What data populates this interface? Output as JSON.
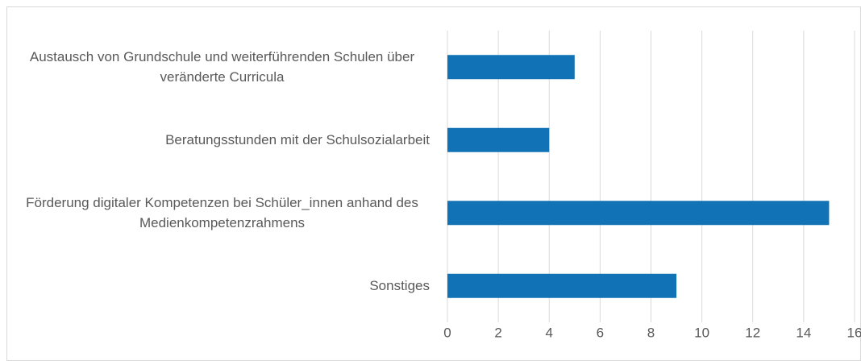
{
  "chart_data": {
    "type": "bar",
    "orientation": "horizontal",
    "categories": [
      "Austausch von Grundschule und weiterführenden Schulen über veränderte Curricula",
      "Beratungsstunden mit der Schulsozialarbeit",
      "Förderung digitaler Kompetenzen bei Schüler_innen anhand des Medienkompetenzrahmens",
      "Sonstiges"
    ],
    "values": [
      5,
      4,
      15,
      9
    ],
    "color": "#1173b5",
    "xlim": [
      0,
      16
    ],
    "xticks": [
      0,
      2,
      4,
      6,
      8,
      10,
      12,
      14,
      16
    ],
    "grid": true
  }
}
